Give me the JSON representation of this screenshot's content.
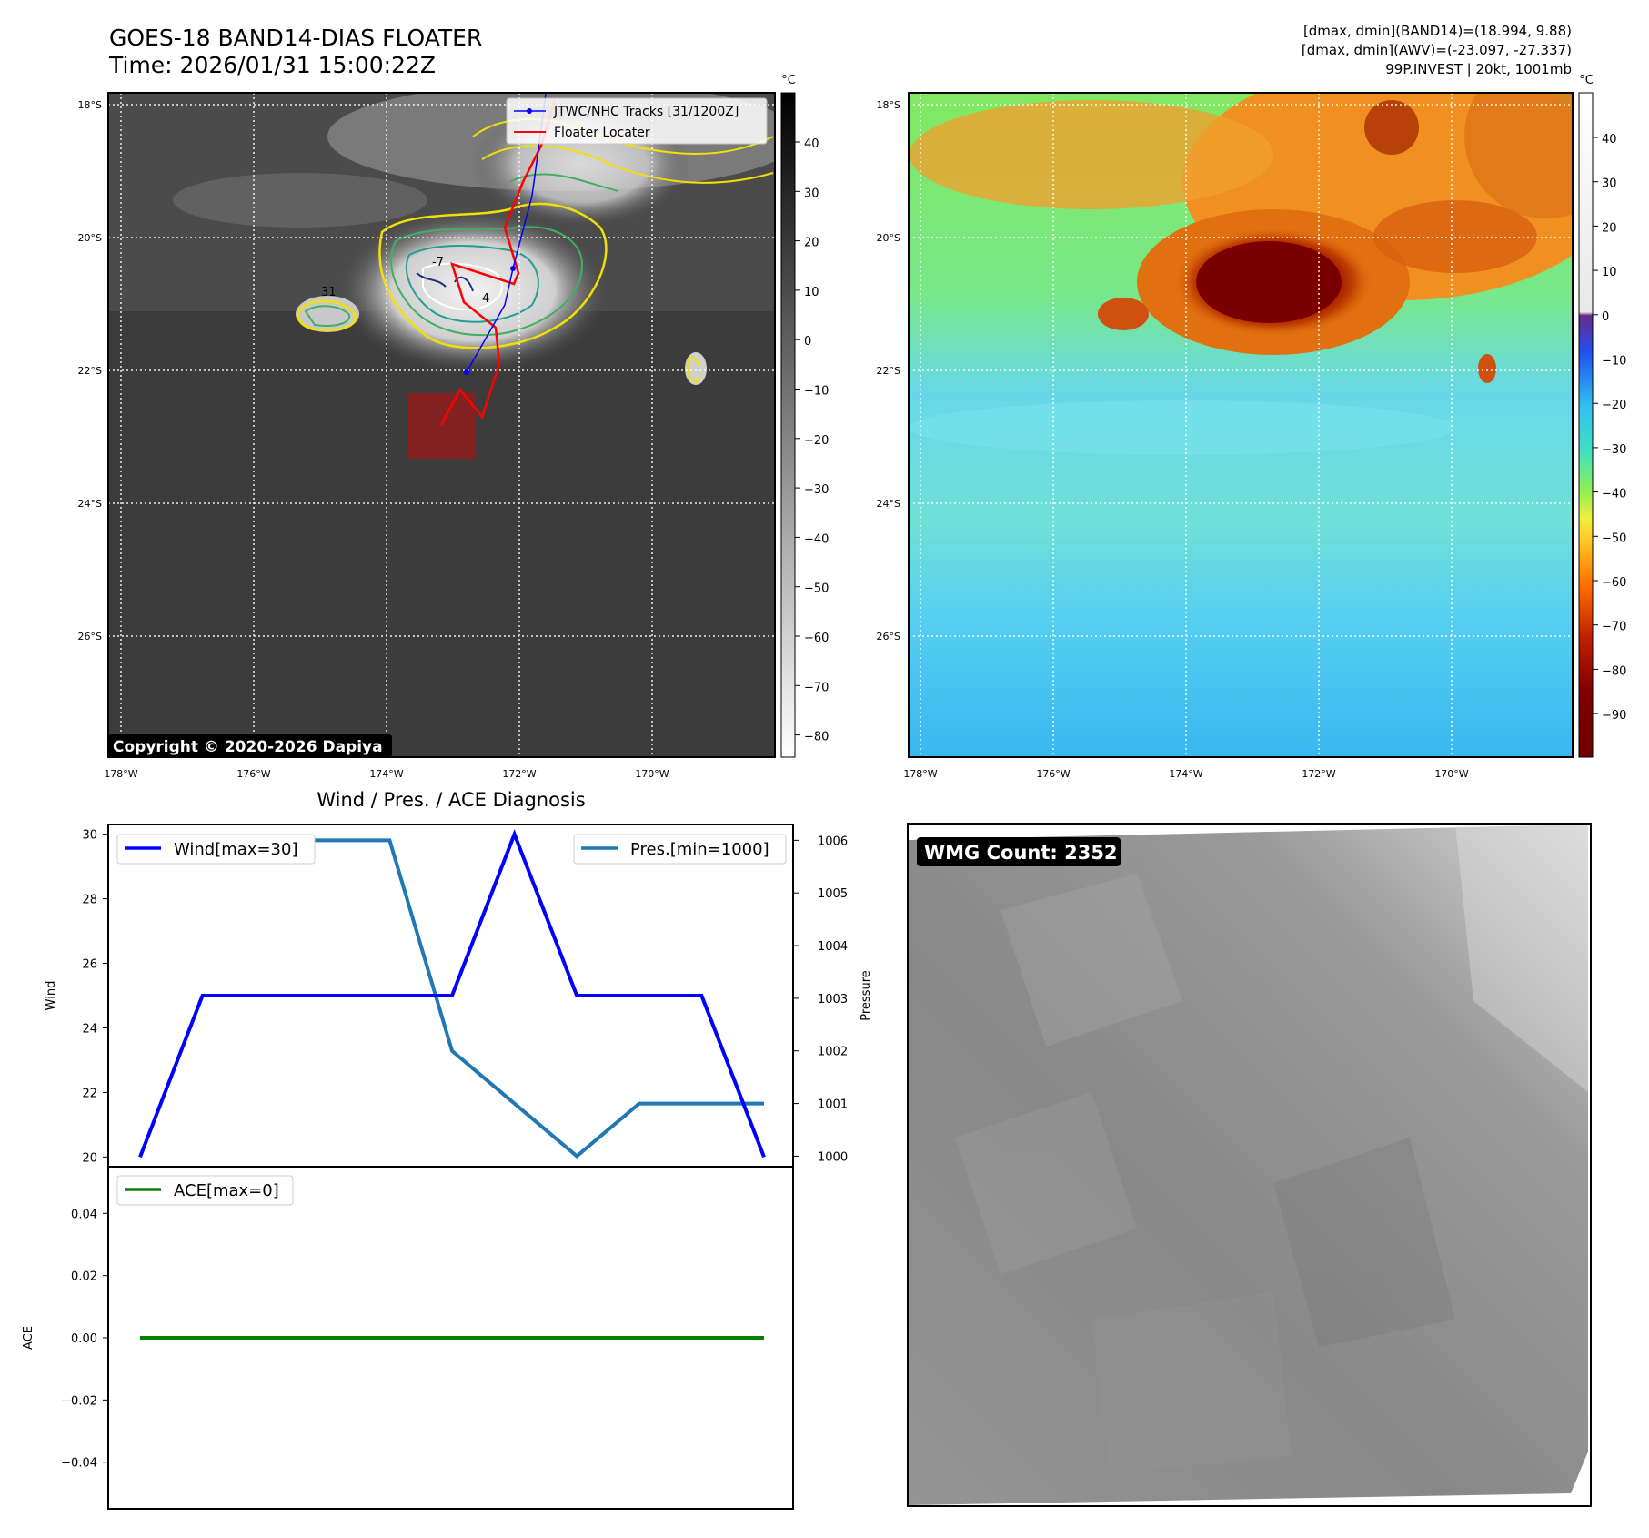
{
  "header": {
    "title": "GOES-18 BAND14-DIAS FLOATER",
    "time": "Time: 2026/01/31 15:00:22Z",
    "stats_band14": "[dmax, dmin](BAND14)=(18.994, 9.88)",
    "stats_awv": "[dmax, dmin](AWV)=(-23.097, -27.337)",
    "storm": "99P.INVEST | 20kt, 1001mb"
  },
  "ir_panel": {
    "lat_labels": [
      "18°S",
      "20°S",
      "22°S",
      "24°S",
      "26°S"
    ],
    "lon_labels": [
      "178°W",
      "176°W",
      "174°W",
      "172°W",
      "170°W"
    ],
    "legend": {
      "track": "JTWC/NHC Tracks [31/1200Z]",
      "locater": "Floater Locater"
    },
    "copyright": "Copyright © 2020-2026 Dapiya",
    "contour_labels": [
      "31",
      "-7",
      "4"
    ],
    "colorbar": {
      "unit": "°C",
      "ticks": [
        "40",
        "30",
        "20",
        "10",
        "0",
        "−10",
        "−20",
        "−30",
        "−40",
        "−50",
        "−60",
        "−70",
        "−80"
      ]
    }
  },
  "awv_panel": {
    "lat_labels": [
      "18°S",
      "20°S",
      "22°S",
      "24°S",
      "26°S"
    ],
    "lon_labels": [
      "178°W",
      "176°W",
      "174°W",
      "172°W",
      "170°W"
    ],
    "colorbar": {
      "unit": "°C",
      "ticks": [
        "40",
        "30",
        "20",
        "10",
        "0",
        "−10",
        "−20",
        "−30",
        "−40",
        "−50",
        "−60",
        "−70",
        "−80",
        "−90"
      ]
    }
  },
  "diagnosis": {
    "title": "Wind / Pres. / ACE Diagnosis",
    "wind_axis_label": "Wind",
    "pressure_axis_label": "Pressure",
    "ace_axis_label": "ACE",
    "wind_legend": "Wind[max=30]",
    "pressure_legend": "Pres.[min=1000]",
    "ace_legend": "ACE[max=0]",
    "wind_ticks": [
      "30",
      "28",
      "26",
      "24",
      "22",
      "20"
    ],
    "pressure_ticks": [
      "1006",
      "1005",
      "1004",
      "1003",
      "1002",
      "1001",
      "1000"
    ],
    "ace_ticks": [
      "0.04",
      "0.02",
      "0.00",
      "−0.02",
      "−0.04"
    ]
  },
  "wmg": {
    "label": "WMG Count: 2352"
  },
  "colors": {
    "wind": "#0000ff",
    "pressure": "#1f77b4",
    "ace": "#008000",
    "track": "#0000ff",
    "locater": "#ff0000"
  },
  "chart_data": [
    {
      "type": "line",
      "title": "Wind / Pres. / ACE Diagnosis",
      "ylabel": "Wind",
      "y2label": "Pressure",
      "x": [
        0,
        1,
        2,
        3,
        4,
        5,
        6,
        7,
        8,
        9,
        10
      ],
      "series": [
        {
          "name": "Wind[max=30]",
          "axis": "left",
          "values": [
            20,
            25,
            25,
            25,
            25,
            25,
            30,
            25,
            25,
            25,
            20
          ]
        },
        {
          "name": "Pres.[min=1000]",
          "axis": "right",
          "values": [
            1006,
            1006,
            1006,
            1006,
            1006,
            1002,
            1001,
            1000,
            1001,
            1001,
            1001
          ]
        }
      ],
      "ylim": [
        19.7,
        30.3
      ],
      "y2lim": [
        999.8,
        1006.3
      ]
    },
    {
      "type": "line",
      "ylabel": "ACE",
      "x": [
        0,
        1,
        2,
        3,
        4,
        5,
        6,
        7,
        8,
        9,
        10
      ],
      "series": [
        {
          "name": "ACE[max=0]",
          "values": [
            0,
            0,
            0,
            0,
            0,
            0,
            0,
            0,
            0,
            0,
            0
          ]
        }
      ],
      "ylim": [
        -0.055,
        0.055
      ]
    }
  ]
}
